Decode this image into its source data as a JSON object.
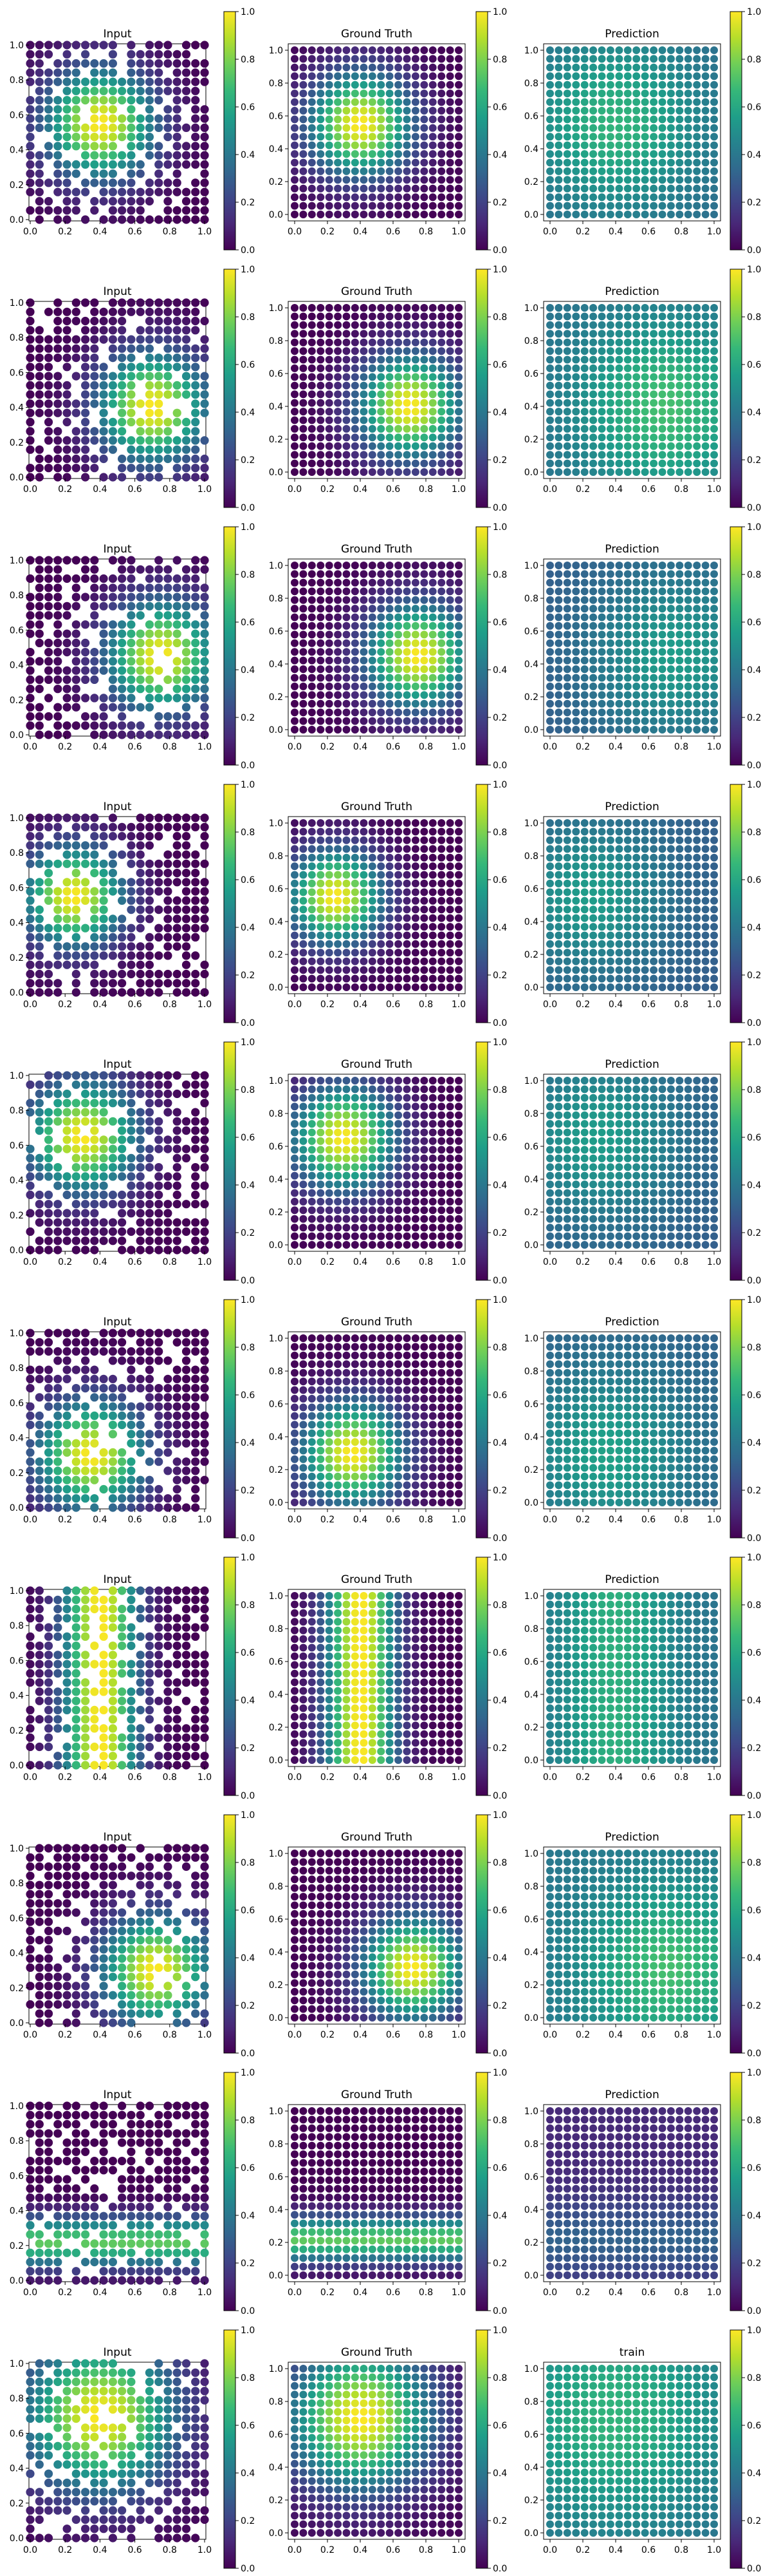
{
  "chart_data": {
    "type": "scatter",
    "grid": false,
    "colormap": "viridis",
    "colors": {
      "viridis_stops": [
        "#440154",
        "#482878",
        "#3e4989",
        "#31688e",
        "#26828e",
        "#1f9e89",
        "#35b779",
        "#6ece58",
        "#b5de2b",
        "#fde725"
      ],
      "axis": "#000000"
    },
    "x_ticks": [
      "0.0",
      "0.2",
      "0.4",
      "0.6",
      "0.8",
      "1.0"
    ],
    "y_ticks": [
      "0.0",
      "0.2",
      "0.4",
      "0.6",
      "0.8",
      "1.0"
    ],
    "colorbar_ticks": [
      "0.0",
      "0.2",
      "0.4",
      "0.6",
      "0.8",
      "1.0"
    ],
    "xlim": [
      0,
      1
    ],
    "ylim": [
      0,
      1
    ],
    "clim": [
      0,
      1
    ],
    "grid_points_per_side": 20,
    "rows": [
      {
        "titles": [
          "Input",
          "Ground Truth",
          "Prediction"
        ],
        "field": {
          "kind": "gauss",
          "cx": 0.4,
          "cy": 0.55,
          "s": 0.22,
          "amp": 1.0
        },
        "prediction": {
          "base": 0.35,
          "amp": 0.3
        }
      },
      {
        "titles": [
          "Input",
          "Ground Truth",
          "Prediction"
        ],
        "field": {
          "kind": "gauss",
          "cx": 0.7,
          "cy": 0.4,
          "s": 0.22,
          "amp": 1.0
        },
        "prediction": {
          "base": 0.38,
          "amp": 0.32
        }
      },
      {
        "titles": [
          "Input",
          "Ground Truth",
          "Prediction"
        ],
        "field": {
          "kind": "gauss",
          "cx": 0.75,
          "cy": 0.45,
          "s": 0.22,
          "amp": 1.0
        },
        "prediction": {
          "base": 0.3,
          "amp": 0.25
        }
      },
      {
        "titles": [
          "Input",
          "Ground Truth",
          "Prediction"
        ],
        "field": {
          "kind": "gauss",
          "cx": 0.25,
          "cy": 0.55,
          "s": 0.2,
          "amp": 1.0
        },
        "prediction": {
          "base": 0.3,
          "amp": 0.25
        }
      },
      {
        "titles": [
          "Input",
          "Ground Truth",
          "Prediction"
        ],
        "field": {
          "kind": "gauss",
          "cx": 0.3,
          "cy": 0.65,
          "s": 0.22,
          "amp": 1.0
        },
        "prediction": {
          "base": 0.3,
          "amp": 0.25
        }
      },
      {
        "titles": [
          "Input",
          "Ground Truth",
          "Prediction"
        ],
        "field": {
          "kind": "gauss",
          "cx": 0.35,
          "cy": 0.3,
          "s": 0.22,
          "amp": 1.0
        },
        "prediction": {
          "base": 0.32,
          "amp": 0.25
        }
      },
      {
        "titles": [
          "Input",
          "Ground Truth",
          "Prediction"
        ],
        "field": {
          "kind": "stripe-x",
          "cx": 0.4,
          "s": 0.15,
          "amp": 1.0
        },
        "prediction": {
          "base": 0.38,
          "amp": 0.25
        }
      },
      {
        "titles": [
          "Input",
          "Ground Truth",
          "Prediction"
        ],
        "field": {
          "kind": "gauss",
          "cx": 0.72,
          "cy": 0.3,
          "s": 0.22,
          "amp": 1.0
        },
        "prediction": {
          "base": 0.4,
          "amp": 0.3
        }
      },
      {
        "titles": [
          "Input",
          "Ground Truth",
          "Prediction"
        ],
        "field": {
          "kind": "stripe-y",
          "cy": 0.22,
          "s": 0.1,
          "amp": 0.75
        },
        "prediction": {
          "base": 0.12,
          "amp": 0.2
        }
      },
      {
        "titles": [
          "Input",
          "Ground Truth",
          "train"
        ],
        "field": {
          "kind": "gauss",
          "cx": 0.4,
          "cy": 0.7,
          "s": 0.3,
          "amp": 1.0
        },
        "prediction": {
          "base": 0.35,
          "amp": 0.3
        }
      }
    ]
  }
}
